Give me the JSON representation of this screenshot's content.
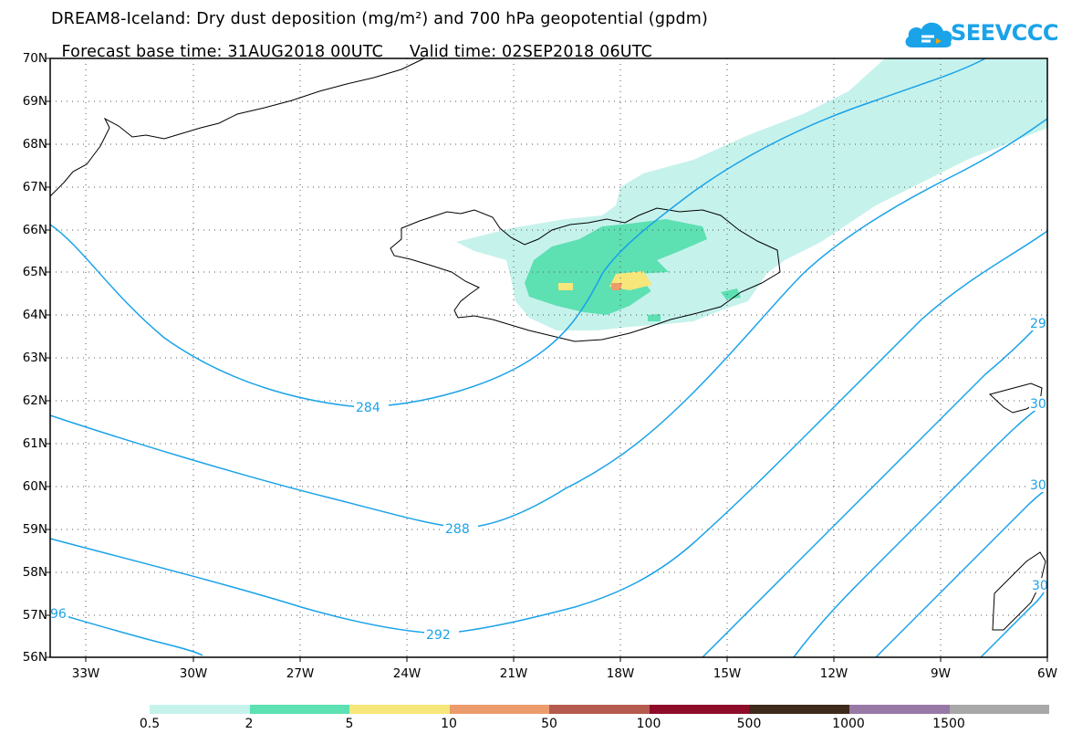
{
  "title": {
    "line1": "DREAM8-Iceland: Dry dust deposition (mg/m²) and 700 hPa geopotential (gpdm)",
    "base_time_label": "Forecast base time: 31AUG2018 00UTC",
    "valid_time_label": "Valid time: 02SEP2018 06UTC"
  },
  "logo": {
    "text": "SEEVCCC",
    "icon": "cloud-logo-icon",
    "color": "#1aa3e8"
  },
  "map": {
    "lat_labels": [
      "70N",
      "69N",
      "68N",
      "67N",
      "66N",
      "65N",
      "64N",
      "63N",
      "62N",
      "61N",
      "60N",
      "59N",
      "58N",
      "57N",
      "56N"
    ],
    "lon_labels": [
      "33W",
      "30W",
      "27W",
      "24W",
      "21W",
      "18W",
      "15W",
      "12W",
      "9W",
      "6W"
    ],
    "contour_color": "#1aa3e8",
    "contour_labels": [
      {
        "text": "284"
      },
      {
        "text": "288"
      },
      {
        "text": "292"
      },
      {
        "text": "96"
      },
      {
        "text": "29"
      },
      {
        "text": "30"
      },
      {
        "text": "30"
      },
      {
        "text": "30"
      }
    ]
  },
  "legend": {
    "colors": [
      "#c6f2ec",
      "#5de0b2",
      "#f7e67a",
      "#ec9c6c",
      "#b55a4e",
      "#8e0c2a",
      "#3e2a1a",
      "#9878a4",
      "#a8a8a8"
    ],
    "labels": [
      "0.5",
      "2",
      "5",
      "10",
      "50",
      "100",
      "500",
      "1000",
      "1500"
    ]
  }
}
